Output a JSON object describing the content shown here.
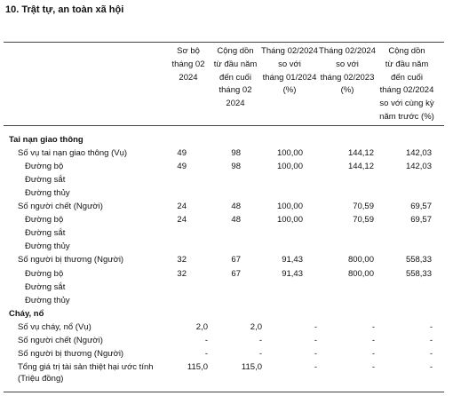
{
  "title": "10. Trật tự, an toàn xã hội",
  "table": {
    "headers": [
      [
        "Sơ bộ",
        "tháng 02",
        "2024"
      ],
      [
        "Cộng dồn",
        "từ đầu năm",
        "đến cuối",
        "tháng 02",
        "2024"
      ],
      [
        "Tháng 02/2024",
        "so với",
        "tháng 01/2024",
        "(%)"
      ],
      [
        "Tháng 02/2024",
        "so với",
        "tháng 02/2023",
        "(%)"
      ],
      [
        "Cộng dồn",
        "từ đầu năm",
        "đến cuối",
        "tháng 02/2024",
        "so với cùng kỳ",
        "năm trước (%)"
      ]
    ],
    "sections": [
      {
        "title": "Tai nạn giao thông",
        "rows": [
          {
            "label": [
              "Số vụ tai nạn giao thông (Vụ)"
            ],
            "values": [
              "49",
              "98",
              "100,00",
              "144,12",
              "142,03"
            ],
            "items": [
              {
                "label": "Đường bộ",
                "values": [
                  "49",
                  "98",
                  "100,00",
                  "144,12",
                  "142,03"
                ]
              },
              {
                "label": "Đường sắt"
              },
              {
                "label": "Đường thủy"
              }
            ]
          },
          {
            "label": [
              "Số người chết (Người)"
            ],
            "values": [
              "24",
              "48",
              "100,00",
              "70,59",
              "69,57"
            ],
            "items": [
              {
                "label": "Đường bộ",
                "values": [
                  "24",
                  "48",
                  "100,00",
                  "70,59",
                  "69,57"
                ]
              },
              {
                "label": "Đường sắt"
              },
              {
                "label": "Đường thủy"
              }
            ]
          },
          {
            "label": [
              "Số người bị thương (Người)"
            ],
            "values": [
              "32",
              "67",
              "91,43",
              "800,00",
              "558,33"
            ],
            "items": [
              {
                "label": "Đường bộ",
                "values": [
                  "32",
                  "67",
                  "91,43",
                  "800,00",
                  "558,33"
                ]
              },
              {
                "label": "Đường sắt"
              },
              {
                "label": "Đường thủy"
              }
            ]
          }
        ]
      },
      {
        "title": "Cháy, nổ",
        "rows": [
          {
            "label": [
              "Số vụ cháy, nổ (Vụ)"
            ],
            "values": [
              "2,0",
              "2,0",
              "-",
              "-",
              "-"
            ]
          },
          {
            "label": [
              "Số người chết (Người)"
            ],
            "values": [
              "-",
              "-",
              "-",
              "-",
              "-"
            ]
          },
          {
            "label": [
              "Số người bị thương (Người)"
            ],
            "values": [
              "-",
              "-",
              "-",
              "-",
              "-"
            ]
          },
          {
            "label": [
              "Tổng giá trị tài sản thiệt hại ước tính",
              "(Triệu đồng)"
            ],
            "values": [
              "115,0",
              "115,0",
              "-",
              "-",
              "-"
            ]
          }
        ]
      }
    ]
  }
}
